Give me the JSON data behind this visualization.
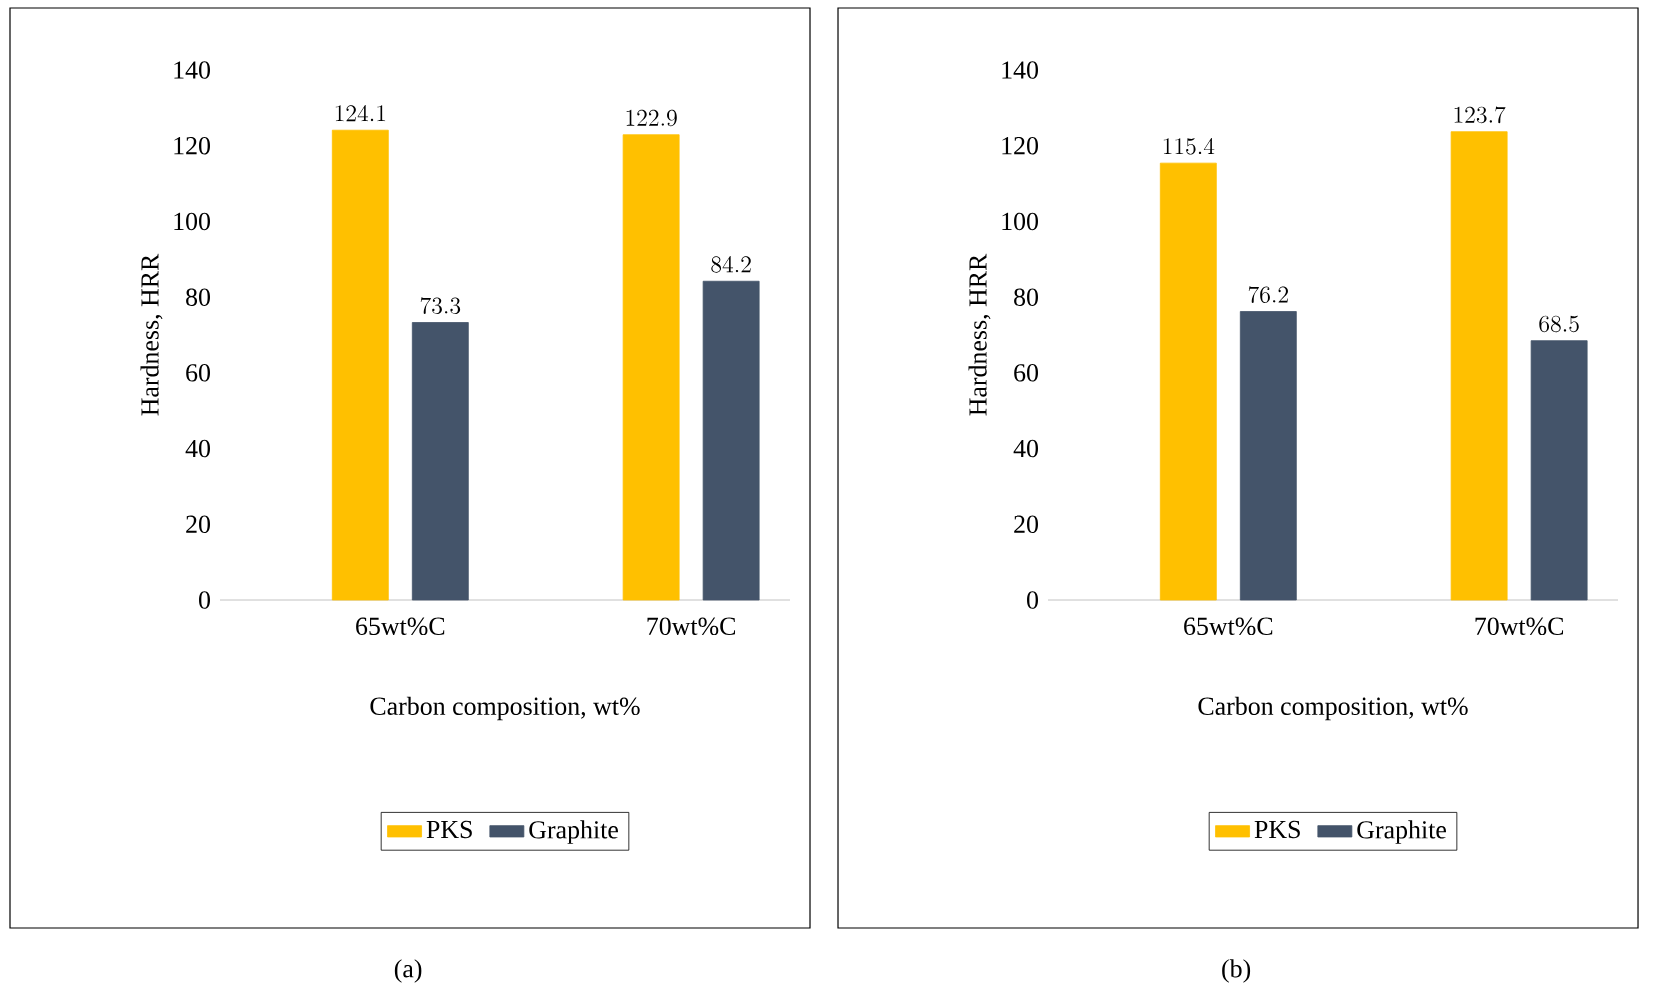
{
  "chart_data": [
    {
      "type": "bar",
      "xlabel": "Carbon composition, wt%",
      "ylabel": "Hardness, HRR",
      "categories": [
        "65wt%C",
        "70wt%C"
      ],
      "series": [
        {
          "name": "PKS",
          "color": "#ffc000",
          "values": [
            124.1,
            122.9
          ]
        },
        {
          "name": "Graphite",
          "color": "#44546a",
          "values": [
            73.3,
            84.2
          ]
        }
      ],
      "ylim": [
        0,
        140
      ],
      "yticks": [
        0,
        20,
        40,
        60,
        80,
        100,
        120,
        140
      ],
      "data_labels": true,
      "legend": "bottom",
      "annotations": [
        "(a)"
      ]
    },
    {
      "type": "bar",
      "xlabel": "Carbon composition, wt%",
      "ylabel": "Hardness, HRR",
      "categories": [
        "65wt%C",
        "70wt%C"
      ],
      "series": [
        {
          "name": "PKS",
          "color": "#ffc000",
          "values": [
            115.4,
            123.7
          ]
        },
        {
          "name": "Graphite",
          "color": "#44546a",
          "values": [
            76.2,
            68.5
          ]
        }
      ],
      "ylim": [
        0,
        140
      ],
      "yticks": [
        0,
        20,
        40,
        60,
        80,
        100,
        120,
        140
      ],
      "data_labels": true,
      "legend": "bottom",
      "annotations": [
        "(b)"
      ]
    }
  ]
}
